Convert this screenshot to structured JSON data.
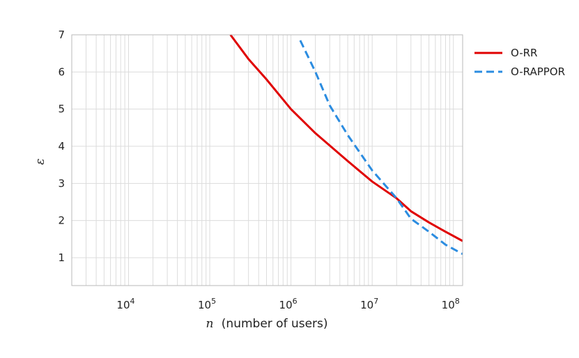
{
  "chart_data": {
    "type": "line",
    "x_scale": "log",
    "xlim": [
      2000,
      130000000
    ],
    "ylim": [
      0.25,
      7
    ],
    "grid": true,
    "legend_position": "outside-right",
    "xlabel": {
      "var": "n",
      "text": "(number of users)"
    },
    "ylabel": "ε",
    "x_ticks": [
      {
        "value": 10000,
        "base": "10",
        "exp": "4"
      },
      {
        "value": 100000,
        "base": "10",
        "exp": "5"
      },
      {
        "value": 1000000,
        "base": "10",
        "exp": "6"
      },
      {
        "value": 10000000,
        "base": "10",
        "exp": "7"
      },
      {
        "value": 100000000,
        "base": "10",
        "exp": "8"
      }
    ],
    "y_ticks": [
      1,
      2,
      3,
      4,
      5,
      6,
      7
    ],
    "series": [
      {
        "name": "O-RR",
        "color": "#e00000",
        "style": "solid",
        "points": [
          [
            180000,
            7.0
          ],
          [
            300000,
            6.35
          ],
          [
            500000,
            5.8
          ],
          [
            1000000,
            5.0
          ],
          [
            2000000,
            4.35
          ],
          [
            5000000,
            3.6
          ],
          [
            10000000,
            3.05
          ],
          [
            20000000,
            2.6
          ],
          [
            30000000,
            2.25
          ],
          [
            50000000,
            1.95
          ],
          [
            80000000,
            1.7
          ],
          [
            130000000,
            1.45
          ]
        ]
      },
      {
        "name": "O-RAPPOR",
        "color": "#2b8ce0",
        "style": "dashed",
        "points": [
          [
            1300000,
            6.85
          ],
          [
            2000000,
            6.0
          ],
          [
            3000000,
            5.1
          ],
          [
            5000000,
            4.3
          ],
          [
            10000000,
            3.35
          ],
          [
            20000000,
            2.6
          ],
          [
            30000000,
            2.05
          ],
          [
            50000000,
            1.7
          ],
          [
            80000000,
            1.35
          ],
          [
            130000000,
            1.1
          ]
        ]
      }
    ]
  }
}
